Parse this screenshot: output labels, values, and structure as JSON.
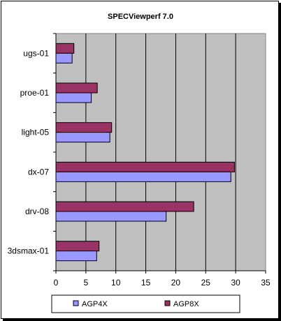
{
  "chart_data": {
    "type": "bar",
    "orientation": "horizontal",
    "title": "SPECViewperf 7.0",
    "xlabel": "",
    "ylabel": "",
    "categories": [
      "ugs-01",
      "proe-01",
      "light-05",
      "dx-07",
      "drv-08",
      "3dsmax-01"
    ],
    "series": [
      {
        "name": "AGP4X",
        "color": "#9999ff",
        "values": [
          2.7,
          5.9,
          9.0,
          29.2,
          18.4,
          6.8
        ]
      },
      {
        "name": "AGP8X",
        "color": "#993366",
        "values": [
          3.0,
          6.9,
          9.3,
          29.8,
          23.0,
          7.2
        ]
      }
    ],
    "xlim": [
      0,
      35
    ],
    "x_ticks": [
      0,
      5,
      10,
      15,
      20,
      25,
      30,
      35
    ],
    "grid": "vertical",
    "plot_background": "#c0c0c0",
    "legend": {
      "position": "bottom",
      "orientation": "horizontal"
    }
  }
}
